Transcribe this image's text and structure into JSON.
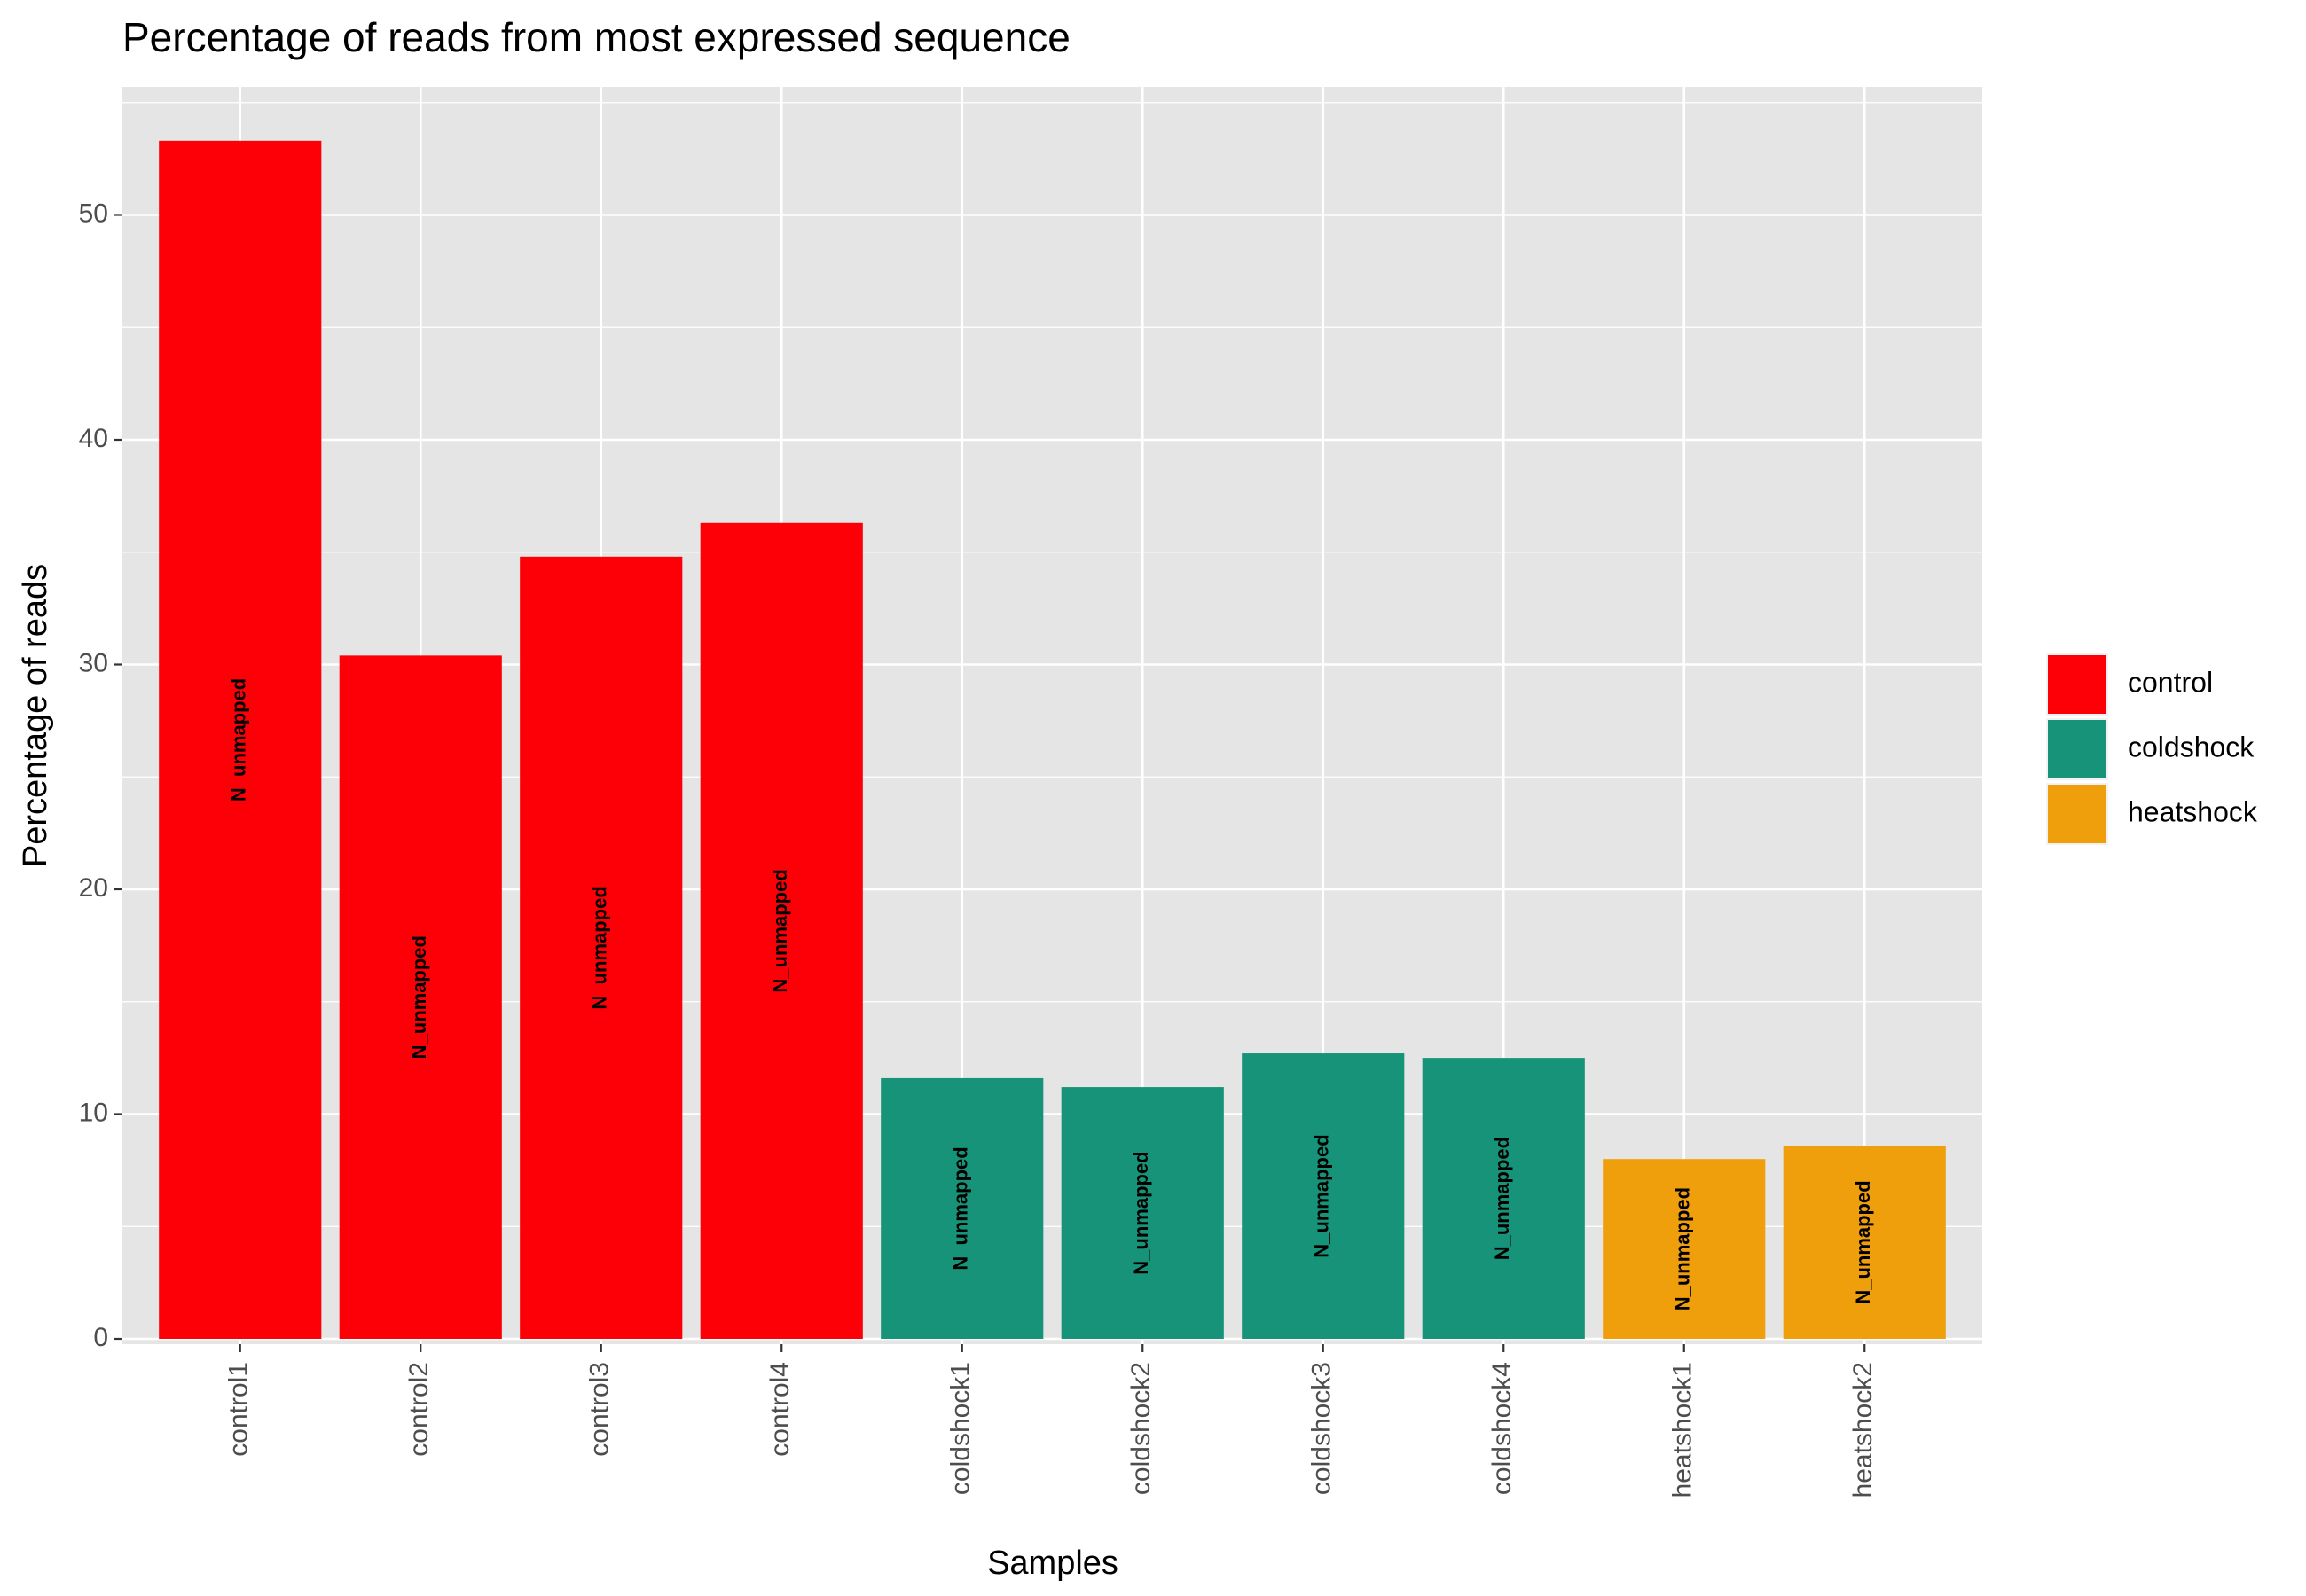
{
  "chart_data": {
    "type": "bar",
    "title": "Percentage of reads from most expressed sequence",
    "xlabel": "Samples",
    "ylabel": "Percentage of reads",
    "ylim": [
      0,
      55.7
    ],
    "yticks": [
      0,
      10,
      20,
      30,
      40,
      50
    ],
    "grid": true,
    "legend_position": "right",
    "categories": [
      "control1",
      "control2",
      "control3",
      "control4",
      "coldshock1",
      "coldshock2",
      "coldshock3",
      "coldshock4",
      "heatshock1",
      "heatshock2"
    ],
    "values": [
      53.3,
      30.4,
      34.8,
      36.3,
      11.6,
      11.2,
      12.7,
      12.5,
      8.0,
      8.6
    ],
    "groups": [
      "control",
      "control",
      "control",
      "control",
      "coldshock",
      "coldshock",
      "coldshock",
      "coldshock",
      "heatshock",
      "heatshock"
    ],
    "bar_labels": [
      "N_unmapped",
      "N_unmapped",
      "N_unmapped",
      "N_unmapped",
      "N_unmapped",
      "N_unmapped",
      "N_unmapped",
      "N_unmapped",
      "N_unmapped",
      "N_unmapped"
    ],
    "legend": [
      {
        "name": "control",
        "color": "#fd0007"
      },
      {
        "name": "coldshock",
        "color": "#169378"
      },
      {
        "name": "heatshock",
        "color": "#ef9f0c"
      }
    ],
    "panel_color": "#e5e5e5",
    "grid_color": "#ffffff"
  }
}
